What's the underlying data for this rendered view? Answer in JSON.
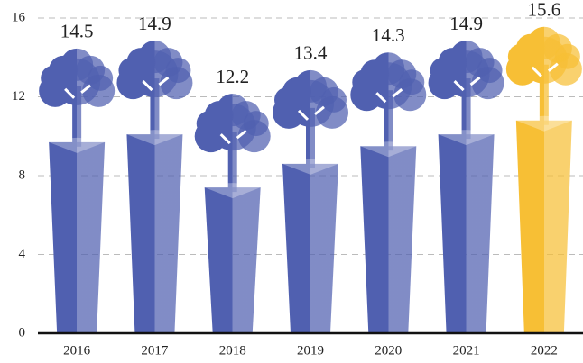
{
  "chart_data": {
    "type": "pictograph-bar",
    "categories": [
      "2016",
      "2017",
      "2018",
      "2019",
      "2020",
      "2021",
      "2022"
    ],
    "values": [
      14.5,
      14.9,
      12.2,
      13.4,
      14.3,
      14.9,
      15.6
    ],
    "colors": [
      "#5060b0",
      "#5060b0",
      "#5060b0",
      "#5060b0",
      "#5060b0",
      "#5060b0",
      "#f7bf35"
    ],
    "ylim": [
      0,
      16
    ],
    "yticks": [
      0,
      4,
      8,
      12,
      16
    ],
    "grid": true
  }
}
